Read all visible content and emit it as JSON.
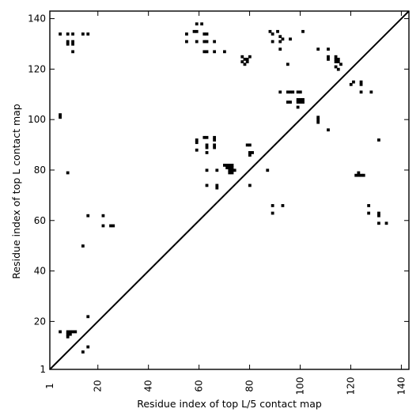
{
  "chart_data": {
    "type": "heatmap",
    "subtype": "contact-map",
    "title": "",
    "xlabel": "Residue index of top L/5 contact map",
    "ylabel": "Residue index of top L contact map",
    "xlim": [
      1,
      143
    ],
    "ylim": [
      1,
      143
    ],
    "xticks": [
      1,
      20,
      40,
      60,
      80,
      100,
      120,
      140
    ],
    "yticks": [
      1,
      20,
      40,
      60,
      80,
      100,
      120,
      140
    ],
    "diagonal": true,
    "grid": false,
    "colors": {
      "contact": "#000000",
      "background": "#ffffff"
    },
    "upper_triangle_contacts": [
      [
        55,
        134
      ],
      [
        55,
        131
      ],
      [
        58,
        135
      ],
      [
        59,
        135
      ],
      [
        59,
        131
      ],
      [
        59,
        138
      ],
      [
        61,
        138
      ],
      [
        62,
        134
      ],
      [
        62,
        131
      ],
      [
        63,
        131
      ],
      [
        63,
        134
      ],
      [
        62,
        127
      ],
      [
        63,
        127
      ],
      [
        66,
        131
      ],
      [
        66,
        127
      ],
      [
        70,
        127
      ],
      [
        77,
        125
      ],
      [
        78,
        124
      ],
      [
        79,
        124
      ],
      [
        80,
        125
      ],
      [
        79,
        123
      ],
      [
        77,
        123
      ],
      [
        78,
        122
      ],
      [
        88,
        135
      ],
      [
        89,
        134
      ],
      [
        91,
        135
      ],
      [
        92,
        133
      ],
      [
        93,
        132
      ],
      [
        92,
        131
      ],
      [
        89,
        131
      ],
      [
        92,
        128
      ],
      [
        96,
        132
      ],
      [
        101,
        135
      ],
      [
        107,
        128
      ],
      [
        111,
        128
      ],
      [
        111,
        125
      ],
      [
        111,
        124
      ],
      [
        95,
        122
      ],
      [
        114,
        125
      ],
      [
        114,
        124
      ],
      [
        115,
        124
      ],
      [
        114,
        123
      ],
      [
        115,
        123
      ],
      [
        116,
        122
      ],
      [
        114,
        121
      ],
      [
        115,
        120
      ],
      [
        120,
        114
      ],
      [
        121,
        115
      ],
      [
        124,
        115
      ],
      [
        124,
        114
      ],
      [
        124,
        111
      ],
      [
        128,
        111
      ],
      [
        92,
        111
      ],
      [
        95,
        111
      ],
      [
        96,
        111
      ],
      [
        97,
        111
      ],
      [
        99,
        111
      ],
      [
        100,
        111
      ],
      [
        95,
        107
      ],
      [
        96,
        107
      ],
      [
        99,
        108
      ],
      [
        100,
        108
      ],
      [
        101,
        108
      ],
      [
        99,
        107
      ],
      [
        100,
        107
      ],
      [
        101,
        107
      ],
      [
        99,
        105
      ],
      [
        107,
        101
      ],
      [
        107,
        100
      ],
      [
        107,
        99
      ],
      [
        111,
        96
      ],
      [
        5,
        134
      ],
      [
        8,
        134
      ],
      [
        10,
        134
      ],
      [
        14,
        134
      ],
      [
        16,
        134
      ],
      [
        8,
        131
      ],
      [
        10,
        131
      ],
      [
        8,
        130
      ],
      [
        10,
        130
      ],
      [
        10,
        127
      ],
      [
        5,
        102
      ],
      [
        5,
        101
      ]
    ],
    "lower_triangle_contacts": [
      [
        59,
        92
      ],
      [
        59,
        91
      ],
      [
        62,
        93
      ],
      [
        63,
        93
      ],
      [
        66,
        93
      ],
      [
        66,
        92
      ],
      [
        63,
        90
      ],
      [
        63,
        89
      ],
      [
        66,
        90
      ],
      [
        66,
        89
      ],
      [
        59,
        88
      ],
      [
        63,
        87
      ],
      [
        79,
        90
      ],
      [
        80,
        90
      ],
      [
        80,
        87
      ],
      [
        81,
        87
      ],
      [
        80,
        86
      ],
      [
        70,
        82
      ],
      [
        71,
        82
      ],
      [
        72,
        82
      ],
      [
        73,
        82
      ],
      [
        71,
        81
      ],
      [
        72,
        81
      ],
      [
        73,
        81
      ],
      [
        72,
        80
      ],
      [
        73,
        80
      ],
      [
        74,
        80
      ],
      [
        72,
        79
      ],
      [
        73,
        79
      ],
      [
        63,
        80
      ],
      [
        67,
        80
      ],
      [
        87,
        80
      ],
      [
        63,
        74
      ],
      [
        67,
        74
      ],
      [
        67,
        73
      ],
      [
        80,
        74
      ],
      [
        123,
        79
      ],
      [
        122,
        78
      ],
      [
        123,
        78
      ],
      [
        124,
        78
      ],
      [
        125,
        78
      ],
      [
        131,
        92
      ],
      [
        127,
        66
      ],
      [
        127,
        63
      ],
      [
        131,
        63
      ],
      [
        131,
        62
      ],
      [
        131,
        59
      ],
      [
        134,
        59
      ],
      [
        89,
        66
      ],
      [
        93,
        66
      ],
      [
        89,
        63
      ],
      [
        16,
        62
      ],
      [
        22,
        62
      ],
      [
        22,
        58
      ],
      [
        25,
        58
      ],
      [
        26,
        58
      ],
      [
        8,
        79
      ],
      [
        14,
        50
      ],
      [
        5,
        16
      ],
      [
        8,
        16
      ],
      [
        9,
        16
      ],
      [
        10,
        16
      ],
      [
        11,
        16
      ],
      [
        8,
        15
      ],
      [
        9,
        15
      ],
      [
        8,
        14
      ],
      [
        16,
        22
      ],
      [
        16,
        10
      ],
      [
        14,
        8
      ]
    ]
  }
}
